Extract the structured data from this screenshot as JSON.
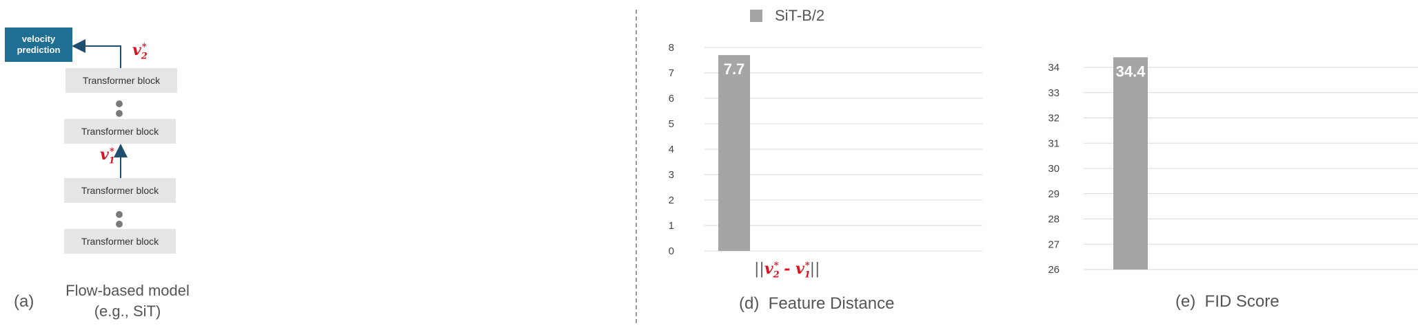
{
  "diagram": {
    "velocity_box": "velocity\nprediction",
    "blocks": [
      "Transformer block",
      "Transformer block",
      "Transformer block",
      "Transformer block"
    ],
    "v2_label": {
      "base": "v",
      "sub": "2",
      "sup": "*"
    },
    "v1_label": {
      "base": "v",
      "sub": "1",
      "sup": "*"
    },
    "caption_letter": "(a)",
    "caption_title": "Flow-based model\n(e.g., SiT)"
  },
  "legend": {
    "label": "SiT-B/2",
    "color": "#a5a5a5"
  },
  "formula": {
    "open": "||",
    "left": {
      "base": "v",
      "sub": "2",
      "sup": "*"
    },
    "op": " - ",
    "right": {
      "base": "v",
      "sub": "1",
      "sup": "*"
    },
    "close": "||"
  },
  "captions": {
    "d": "(d)  Feature Distance",
    "e": "(e)  FID Score"
  },
  "chart_data": [
    {
      "type": "bar",
      "categories": [
        ""
      ],
      "series": [
        {
          "name": "SiT-B/2",
          "values": [
            7.7
          ]
        }
      ],
      "data_labels": [
        "7.7"
      ],
      "ylim": [
        0,
        8
      ],
      "yticks": [
        "0",
        "1",
        "2",
        "3",
        "4",
        "5",
        "6",
        "7",
        "8"
      ],
      "grid": true,
      "color": "#a5a5a5"
    },
    {
      "type": "bar",
      "categories": [
        ""
      ],
      "series": [
        {
          "name": "SiT-B/2",
          "values": [
            34.4
          ]
        }
      ],
      "data_labels": [
        "34.4"
      ],
      "ylim": [
        26,
        34
      ],
      "yticks": [
        "26",
        "27",
        "28",
        "29",
        "30",
        "31",
        "32",
        "33",
        "34"
      ],
      "grid": true,
      "color": "#a5a5a5"
    }
  ]
}
